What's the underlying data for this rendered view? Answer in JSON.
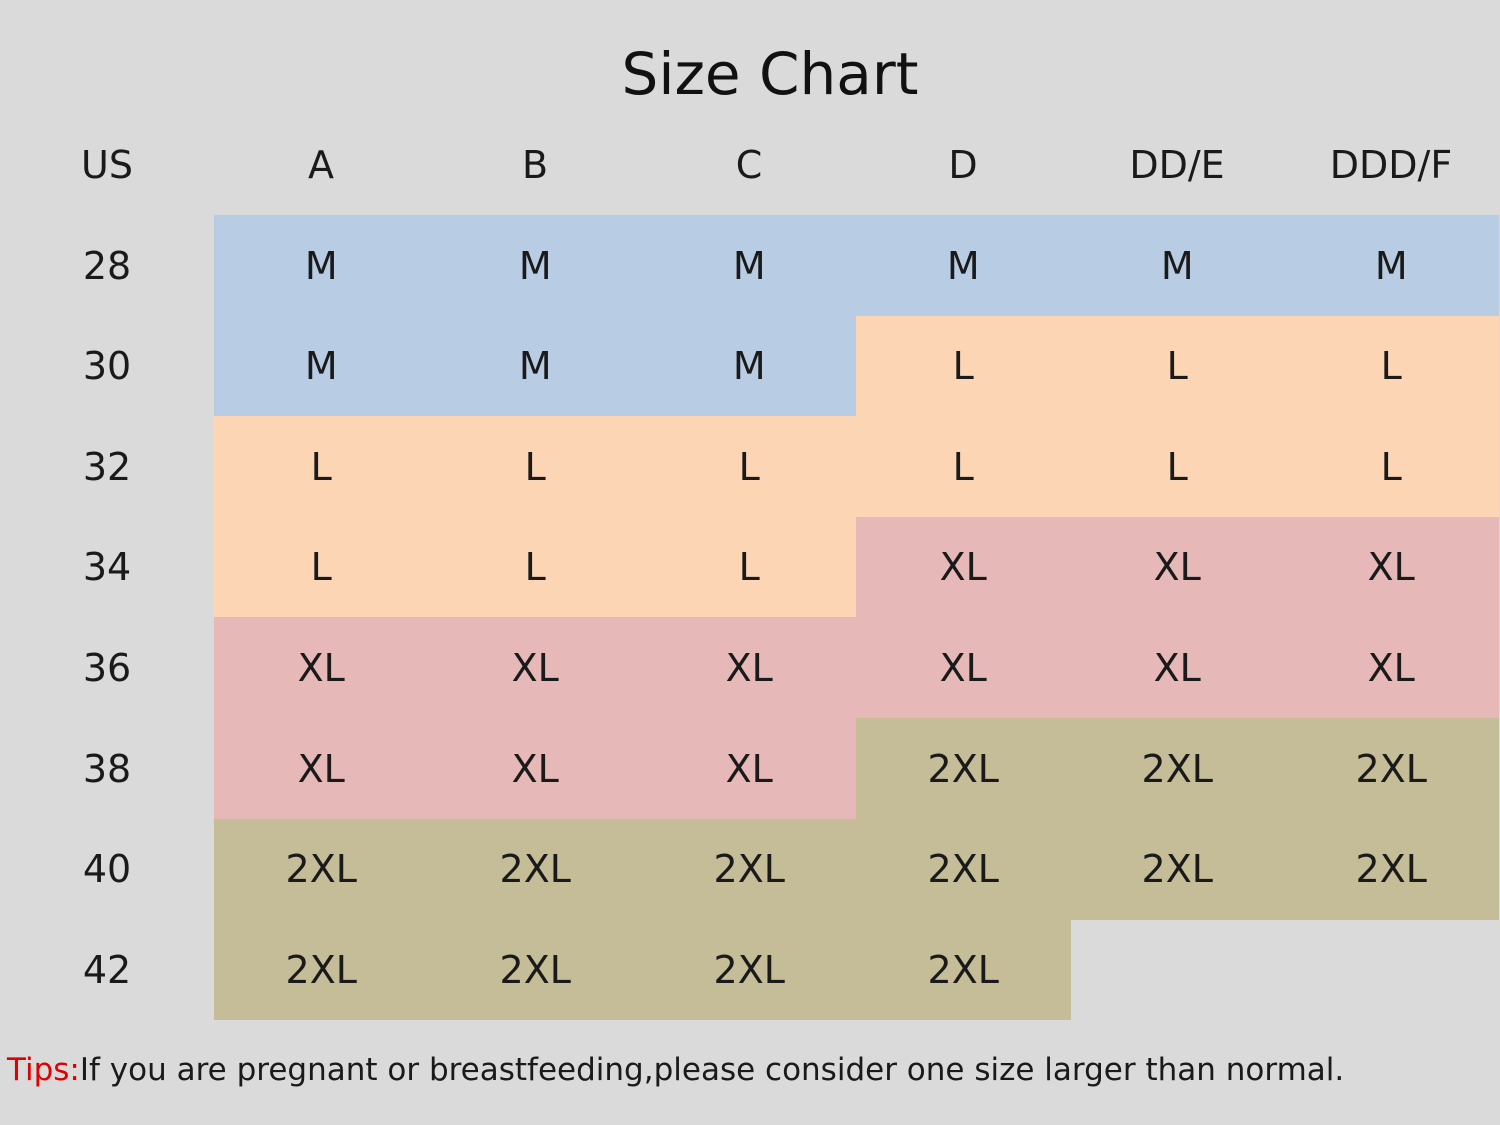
{
  "header": {
    "title": "Size Chart"
  },
  "table": {
    "columns": [
      "US",
      "A",
      "B",
      "C",
      "D",
      "DD/E",
      "DDD/F"
    ],
    "size_colors": {
      "M": "#b8cce4",
      "L": "#fcd5b5",
      "XL": "#e6b9b8",
      "2XL": "#c4bd97"
    },
    "rows": [
      [
        "28",
        "M",
        "M",
        "M",
        "M",
        "M",
        "M"
      ],
      [
        "30",
        "M",
        "M",
        "M",
        "L",
        "L",
        "L"
      ],
      [
        "32",
        "L",
        "L",
        "L",
        "L",
        "L",
        "L"
      ],
      [
        "34",
        "L",
        "L",
        "L",
        "XL",
        "XL",
        "XL"
      ],
      [
        "36",
        "XL",
        "XL",
        "XL",
        "XL",
        "XL",
        "XL"
      ],
      [
        "38",
        "XL",
        "XL",
        "XL",
        "2XL",
        "2XL",
        "2XL"
      ],
      [
        "40",
        "2XL",
        "2XL",
        "2XL",
        "2XL",
        "2XL",
        "2XL"
      ],
      [
        "42",
        "2XL",
        "2XL",
        "2XL",
        "2XL",
        null,
        null
      ]
    ]
  },
  "tips": {
    "label": "Tips:",
    "text": "If you are pregnant or breastfeeding,please consider one size larger than normal."
  }
}
